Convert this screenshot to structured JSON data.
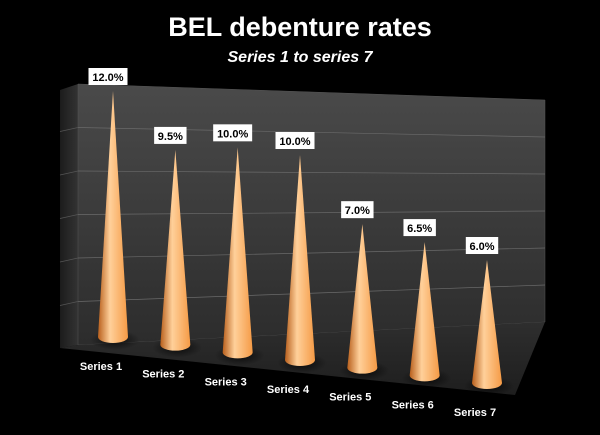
{
  "chart_data": {
    "type": "bar",
    "title": "BEL debenture rates",
    "subtitle": "Series 1 to series 7",
    "xlabel": "",
    "ylabel": "",
    "categories": [
      "Series  1",
      "Series 2",
      "Series 3",
      "Series 4",
      "Series 5",
      "Series 6",
      "Series 7"
    ],
    "values": [
      12.0,
      9.5,
      10.0,
      10.0,
      7.0,
      6.5,
      6.0
    ],
    "data_labels": [
      "12.0%",
      "9.5%",
      "10.0%",
      "10.0%",
      "7.0%",
      "6.5%",
      "6.0%"
    ],
    "ylim": [
      0,
      12
    ],
    "grid": true,
    "legend": "none",
    "bar_shape": "cone",
    "colors": {
      "background": "#000000",
      "cone": "#f59a45",
      "cone_dark": "#b85f1c",
      "cone_light": "#ffd09a",
      "wall": "#3a3a3a",
      "floor": "#2a2a2a",
      "text": "#ffffff",
      "label_box": "#ffffff",
      "label_text": "#000000"
    }
  }
}
